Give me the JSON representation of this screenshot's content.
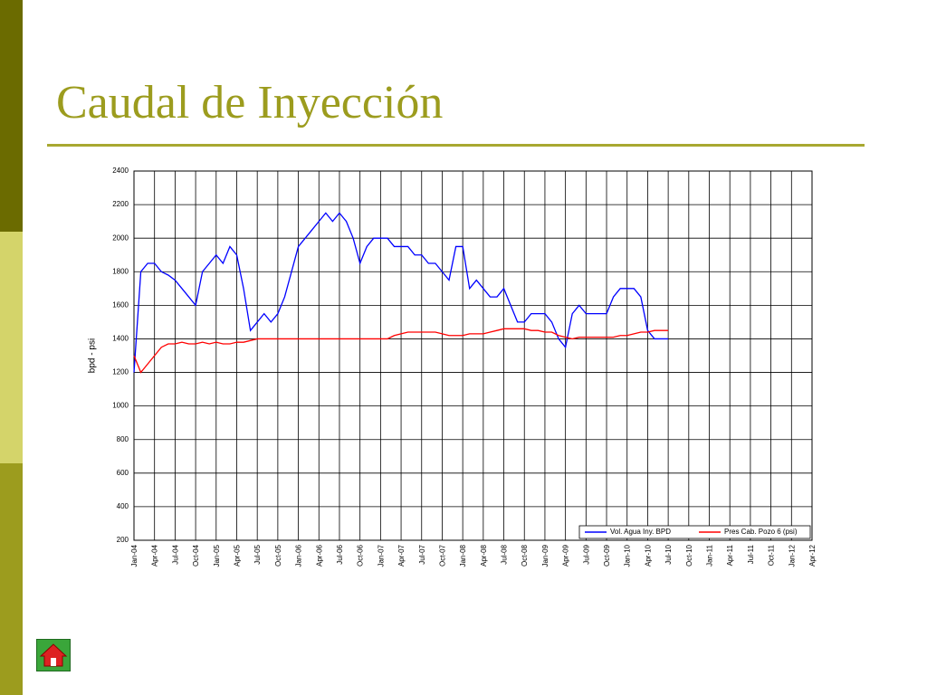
{
  "title": "Caudal de Inyección",
  "chart_data": {
    "type": "line",
    "ylabel": "bpd - psi",
    "x": [
      "Jan-04",
      "Feb-04",
      "Mar-04",
      "Apr-04",
      "May-04",
      "Jun-04",
      "Jul-04",
      "Aug-04",
      "Sep-04",
      "Oct-04",
      "Nov-04",
      "Dec-04",
      "Jan-05",
      "Feb-05",
      "Mar-05",
      "Apr-05",
      "May-05",
      "Jun-05",
      "Jul-05",
      "Aug-05",
      "Sep-05",
      "Oct-05",
      "Nov-05",
      "Dec-05",
      "Jan-06",
      "Feb-06",
      "Mar-06",
      "Apr-06",
      "May-06",
      "Jun-06",
      "Jul-06",
      "Aug-06",
      "Sep-06",
      "Oct-06",
      "Nov-06",
      "Dec-06",
      "Jan-07",
      "Feb-07",
      "Mar-07",
      "Apr-07",
      "May-07",
      "Jun-07",
      "Jul-07",
      "Aug-07",
      "Sep-07",
      "Oct-07",
      "Nov-07",
      "Dec-07",
      "Jan-08",
      "Feb-08",
      "Mar-08",
      "Apr-08",
      "May-08",
      "Jun-08",
      "Jul-08",
      "Aug-08",
      "Sep-08",
      "Oct-08",
      "Nov-08",
      "Dec-08",
      "Jan-09",
      "Feb-09",
      "Mar-09",
      "Apr-09",
      "May-09",
      "Jun-09",
      "Jul-09",
      "Aug-09",
      "Sep-09",
      "Oct-09",
      "Nov-09",
      "Dec-09",
      "Jan-10",
      "Feb-10",
      "Mar-10",
      "Apr-10",
      "May-10",
      "Jun-10",
      "Jul-10",
      "Aug-10",
      "Sep-10",
      "Oct-10",
      "Nov-10",
      "Dec-10",
      "Jan-11",
      "Feb-11",
      "Mar-11",
      "Apr-11",
      "May-11",
      "Jun-11",
      "Jul-11",
      "Aug-11",
      "Sep-11",
      "Oct-11",
      "Nov-11",
      "Dec-11",
      "Jan-12",
      "Feb-12",
      "Mar-12",
      "Apr-12"
    ],
    "xticks": [
      "Jan-04",
      "Apr-04",
      "Jul-04",
      "Oct-04",
      "Jan-05",
      "Apr-05",
      "Jul-05",
      "Oct-05",
      "Jan-06",
      "Apr-06",
      "Jul-06",
      "Oct-06",
      "Jan-07",
      "Apr-07",
      "Jul-07",
      "Oct-07",
      "Jan-08",
      "Apr-08",
      "Jul-08",
      "Oct-08",
      "Jan-09",
      "Apr-09",
      "Jul-09",
      "Oct-09",
      "Jan-10",
      "Apr-10",
      "Jul-10",
      "Oct-10",
      "Jan-11",
      "Apr-11",
      "Jul-11",
      "Oct-11",
      "Jan-12",
      "Apr-12"
    ],
    "ylim": [
      200,
      2400
    ],
    "yticks": [
      200,
      400,
      600,
      800,
      1000,
      1200,
      1400,
      1600,
      1800,
      2000,
      2200,
      2400
    ],
    "grid": true,
    "legend": "bottom-right",
    "series": [
      {
        "name": "Vol. Agua Iny. BPD",
        "color": "#0000ff",
        "values": [
          1200,
          1800,
          1850,
          1850,
          1800,
          1780,
          1750,
          1700,
          1650,
          1600,
          1800,
          1850,
          1900,
          1850,
          1950,
          1900,
          1700,
          1450,
          1500,
          1550,
          1500,
          1550,
          1650,
          1800,
          1950,
          2000,
          2050,
          2100,
          2150,
          2100,
          2150,
          2100,
          2000,
          1850,
          1950,
          2000,
          2000,
          2000,
          1950,
          1950,
          1950,
          1900,
          1900,
          1850,
          1850,
          1800,
          1750,
          1950,
          1950,
          1700,
          1750,
          1700,
          1650,
          1650,
          1700,
          1600,
          1500,
          1500,
          1550,
          1550,
          1550,
          1500,
          1400,
          1350,
          1550,
          1600,
          1550,
          1550,
          1550,
          1550,
          1650,
          1700,
          1700,
          1700,
          1650,
          1450,
          1400,
          1400,
          1400,
          null,
          null,
          null,
          null,
          null,
          null,
          null,
          null,
          null,
          null,
          null,
          null,
          null,
          null,
          null,
          null,
          null,
          null,
          null,
          null,
          null
        ]
      },
      {
        "name": "Pres Cab. Pozo 6 (psi)",
        "color": "#ff0000",
        "values": [
          1300,
          1200,
          1250,
          1300,
          1350,
          1370,
          1370,
          1380,
          1370,
          1370,
          1380,
          1370,
          1380,
          1370,
          1370,
          1380,
          1380,
          1390,
          1400,
          1400,
          1400,
          1400,
          1400,
          1400,
          1400,
          1400,
          1400,
          1400,
          1400,
          1400,
          1400,
          1400,
          1400,
          1400,
          1400,
          1400,
          1400,
          1400,
          1420,
          1430,
          1440,
          1440,
          1440,
          1440,
          1440,
          1430,
          1420,
          1420,
          1420,
          1430,
          1430,
          1430,
          1440,
          1450,
          1460,
          1460,
          1460,
          1460,
          1450,
          1450,
          1440,
          1440,
          1420,
          1410,
          1400,
          1410,
          1410,
          1410,
          1410,
          1410,
          1410,
          1420,
          1420,
          1430,
          1440,
          1440,
          1450,
          1450,
          1450,
          null,
          null,
          null,
          null,
          null,
          null,
          null,
          null,
          null,
          null,
          null,
          null,
          null,
          null,
          null,
          null,
          null,
          null,
          null,
          null,
          null
        ]
      }
    ]
  }
}
